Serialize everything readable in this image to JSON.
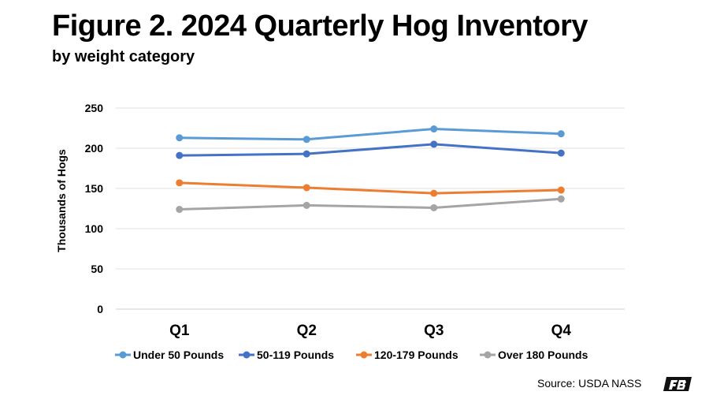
{
  "title": "Figure 2. 2024 Quarterly Hog Inventory",
  "subtitle": "by weight category",
  "source": "Source: USDA NASS",
  "logo_text": "FB",
  "chart_data": {
    "type": "line",
    "title": "Figure 2. 2024 Quarterly Hog Inventory",
    "subtitle": "by weight category",
    "categories": [
      "Q1",
      "Q2",
      "Q3",
      "Q4"
    ],
    "ylabel": "Thousands of Hogs",
    "xlabel": "",
    "ylim": [
      0,
      250
    ],
    "yticks": [
      0,
      50,
      100,
      150,
      200,
      250
    ],
    "grid": true,
    "legend": "bottom",
    "series": [
      {
        "name": "Under 50 Pounds",
        "color": "#5B9BD5",
        "values": [
          213,
          211,
          224,
          218
        ]
      },
      {
        "name": "50-119 Pounds",
        "color": "#4472C4",
        "values": [
          191,
          193,
          205,
          194
        ]
      },
      {
        "name": "120-179 Pounds",
        "color": "#ED7D31",
        "values": [
          157,
          151,
          144,
          148
        ]
      },
      {
        "name": "Over 180 Pounds",
        "color": "#A5A5A5",
        "values": [
          124,
          129,
          126,
          137
        ]
      }
    ]
  }
}
